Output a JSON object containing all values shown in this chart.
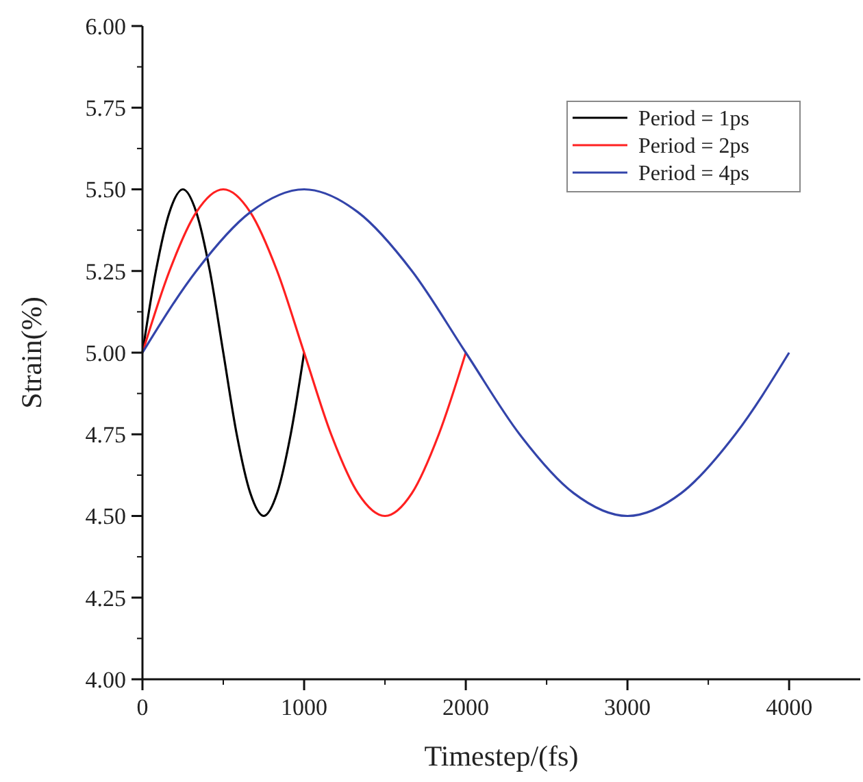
{
  "chart_data": {
    "type": "line",
    "xlabel": "Timestep/(fs)",
    "ylabel": "Strain(%)",
    "xlim": [
      0,
      4440
    ],
    "xticks": [
      0,
      1000,
      2000,
      3000,
      4000
    ],
    "ylim": [
      4,
      6
    ],
    "yticks": [
      {
        "value": 4,
        "label": "4.00"
      },
      {
        "value": 4.25,
        "label": "4.25"
      },
      {
        "value": 4.5,
        "label": "4.50"
      },
      {
        "value": 4.75,
        "label": "4.75"
      },
      {
        "value": 5,
        "label": "5.00"
      },
      {
        "value": 5.25,
        "label": "5.25"
      },
      {
        "value": 5.5,
        "label": "5.50"
      },
      {
        "value": 5.75,
        "label": "5.75"
      },
      {
        "value": 6,
        "label": "6.00"
      }
    ],
    "grid": false,
    "legend": "top right",
    "marker": "none",
    "line_style": "solid",
    "series": [
      {
        "name": "Period = 1ps",
        "color": "#000000",
        "x": [
          0,
          83,
          167,
          250,
          333,
          417,
          500,
          583,
          667,
          750,
          833,
          917,
          1000
        ],
        "values": [
          5,
          5.25,
          5.43,
          5.5,
          5.43,
          5.25,
          5,
          4.75,
          4.57,
          4.5,
          4.57,
          4.75,
          5
        ]
      },
      {
        "name": "Period = 2ps",
        "color": "#ff2020",
        "x": [
          0,
          167,
          333,
          500,
          667,
          833,
          1000,
          1167,
          1333,
          1500,
          1667,
          1833,
          2000
        ],
        "values": [
          5,
          5.25,
          5.43,
          5.5,
          5.43,
          5.25,
          5,
          4.75,
          4.57,
          4.5,
          4.57,
          4.75,
          5
        ]
      },
      {
        "name": "Period = 4ps",
        "color": "#3344aa",
        "x": [
          0,
          333,
          667,
          1000,
          1333,
          1667,
          2000,
          2333,
          2667,
          3000,
          3333,
          3667,
          4000
        ],
        "values": [
          5,
          5.25,
          5.43,
          5.5,
          5.43,
          5.25,
          5,
          4.75,
          4.57,
          4.5,
          4.57,
          4.75,
          5
        ]
      }
    ]
  }
}
